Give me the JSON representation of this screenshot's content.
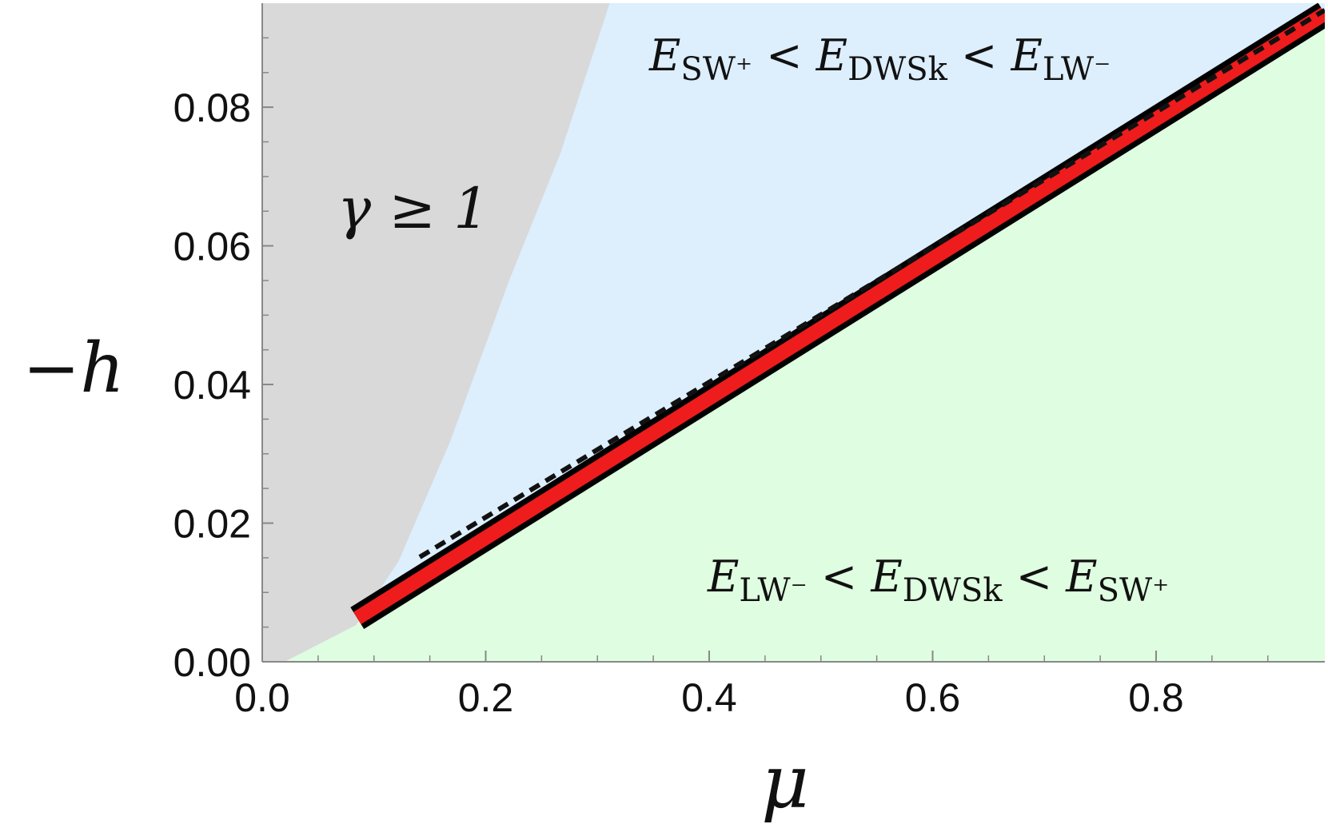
{
  "chart_data": {
    "type": "phase",
    "xlabel": "μ",
    "ylabel": "−h",
    "xlim": [
      0,
      0.951
    ],
    "ylim": [
      0,
      0.095
    ],
    "xticks": [
      {
        "value": 0,
        "label": "0.0"
      },
      {
        "value": 0.2,
        "label": "0.2"
      },
      {
        "value": 0.4,
        "label": "0.4"
      },
      {
        "value": 0.6,
        "label": "0.6"
      },
      {
        "value": 0.8,
        "label": "0.8"
      }
    ],
    "yticks": [
      {
        "value": 0,
        "label": "0.00"
      },
      {
        "value": 0.02,
        "label": "0.02"
      },
      {
        "value": 0.04,
        "label": "0.04"
      },
      {
        "value": 0.06,
        "label": "0.06"
      },
      {
        "value": 0.08,
        "label": "0.08"
      }
    ],
    "xminorticks": [
      0.05,
      0.1,
      0.15,
      0.25,
      0.3,
      0.35,
      0.45,
      0.5,
      0.55,
      0.65,
      0.7,
      0.75,
      0.85,
      0.9
    ],
    "yminorticks": [
      0.005,
      0.01,
      0.015,
      0.025,
      0.03,
      0.035,
      0.045,
      0.05,
      0.055,
      0.065,
      0.07,
      0.075,
      0.085,
      0.09
    ],
    "gray_boundary": {
      "color": "#d9d9d9",
      "x": [
        0.02,
        0.084,
        0.122,
        0.168,
        0.221,
        0.267,
        0.311
      ],
      "y": [
        0,
        0.0053,
        0.0145,
        0.0317,
        0.055,
        0.0734,
        0.095
      ]
    },
    "band": {
      "x": [
        0.085,
        0.951
      ],
      "y": [
        0.0063,
        0.0935
      ]
    },
    "dashed_line": {
      "x": [
        0.141,
        0.951
      ],
      "y": [
        0.0151,
        0.094
      ]
    },
    "upper_color": "#ddeefd",
    "lower_color": "#dffde0",
    "annotations": {
      "gamma": "γ ≥ 1",
      "upper": [
        "E",
        "SW⁺",
        " < ",
        "E",
        "DWSk",
        " < ",
        "E",
        "LW⁻"
      ],
      "lower": [
        "E",
        "LW⁻",
        " < ",
        "E",
        "DWSk",
        " < ",
        "E",
        "SW⁺"
      ]
    }
  }
}
